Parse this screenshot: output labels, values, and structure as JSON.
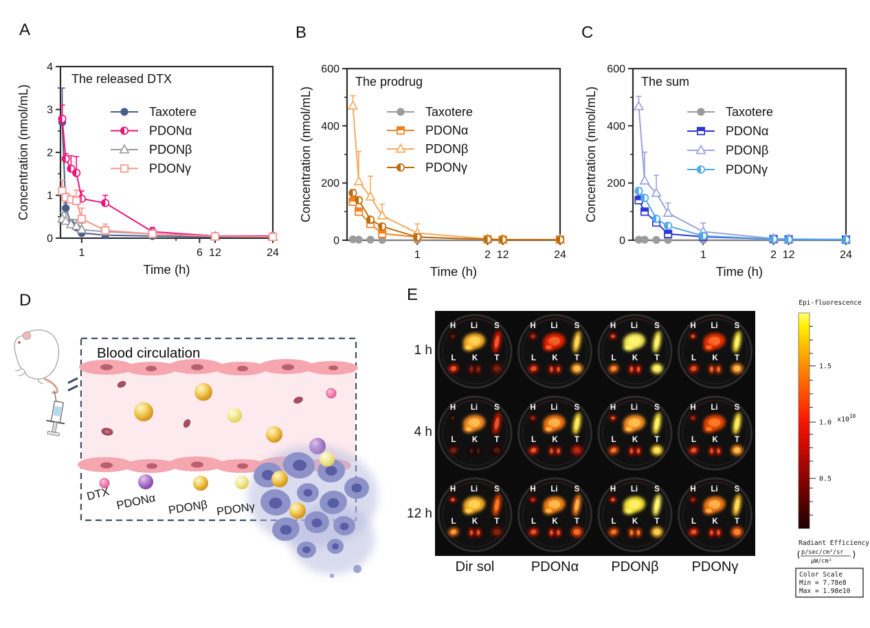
{
  "figure": {
    "panel_labels": [
      "A",
      "B",
      "C",
      "D",
      "E"
    ]
  },
  "chart_data": [
    {
      "type": "line",
      "panel": "A",
      "title": "The released DTX",
      "xlabel": "Time (h)",
      "ylabel": "Concentration (nmol/mL)",
      "ylim": [
        0,
        4
      ],
      "yticks": [
        0,
        1,
        2,
        3,
        4
      ],
      "yticks_minor": [
        0.5,
        1.5,
        2.5,
        3.5
      ],
      "xticks": [
        1,
        6,
        12,
        24
      ],
      "xticks_minor": [
        5
      ],
      "grid": false,
      "legend_position": "inside-top-right",
      "x": [
        0.083,
        0.25,
        0.5,
        0.75,
        1,
        2,
        4,
        12,
        24
      ],
      "series": [
        {
          "name": "Taxotere",
          "color": "#4a5b8e",
          "marker": "circle",
          "values": [
            2.7,
            0.7,
            0.33,
            0.25,
            0.12,
            0.07,
            0.05,
            0.03,
            0.03
          ],
          "err": [
            0.8,
            0.12,
            0.1,
            0.18,
            0.1,
            0.05,
            0.03,
            0.02,
            0.02
          ]
        },
        {
          "name": "PDONα",
          "color": "#ee1378",
          "marker": "circle-half",
          "values": [
            2.78,
            1.85,
            1.62,
            1.52,
            0.92,
            0.82,
            0.15,
            0.05,
            0.05
          ],
          "err": [
            0.32,
            0.12,
            0.3,
            0.38,
            0.18,
            0.18,
            0.1,
            0.03,
            0.03
          ]
        },
        {
          "name": "PDONβ",
          "color": "#9b9b9d",
          "marker": "triangle-open",
          "values": [
            0.45,
            0.4,
            0.32,
            0.28,
            0.2,
            0.15,
            0.1,
            0.04,
            0.03
          ],
          "err": [
            0.15,
            0.2,
            0.12,
            0.15,
            0.15,
            0.12,
            0.07,
            0.02,
            0.02
          ]
        },
        {
          "name": "PDONγ",
          "color": "#f7948b",
          "marker": "square-open",
          "values": [
            1.1,
            0.95,
            0.9,
            0.87,
            0.45,
            0.18,
            0.1,
            0.04,
            0.03
          ],
          "err": [
            0.25,
            0.1,
            0.08,
            0.25,
            0.25,
            0.15,
            0.07,
            0.02,
            0.02
          ]
        }
      ]
    },
    {
      "type": "line",
      "panel": "B",
      "title": "The prodrug",
      "xlabel": "Time (h)",
      "ylabel": "Concentration (nmol/mL)",
      "ylim": [
        0,
        600
      ],
      "yticks": [
        0,
        200,
        400,
        600
      ],
      "yticks_minor": [
        100,
        300,
        500
      ],
      "xticks": [
        1,
        2,
        12,
        24
      ],
      "xticks_minor": [
        0.5
      ],
      "grid": false,
      "legend_position": "inside-top-right",
      "x": [
        0.083,
        0.167,
        0.333,
        0.5,
        1,
        2,
        12,
        24
      ],
      "series": [
        {
          "name": "Taxotere",
          "color": "#9b9b9d",
          "marker": "circle",
          "values": [
            3,
            2,
            2,
            1,
            1,
            1,
            1,
            1
          ],
          "err": [
            1,
            1,
            1,
            1,
            1,
            0.5,
            0.5,
            0.5
          ]
        },
        {
          "name": "PDONα",
          "color": "#f28221",
          "marker": "square-half",
          "values": [
            135,
            100,
            57,
            23,
            11,
            3,
            2,
            2
          ],
          "err": [
            15,
            12,
            10,
            8,
            6,
            2,
            1,
            1
          ]
        },
        {
          "name": "PDONβ",
          "color": "#f7a85c",
          "marker": "triangle-open",
          "values": [
            470,
            205,
            152,
            86,
            25,
            5,
            3,
            2
          ],
          "err": [
            35,
            105,
            72,
            40,
            32,
            3,
            2,
            2
          ]
        },
        {
          "name": "PDONγ",
          "color": "#bf6c0e",
          "marker": "circle-half",
          "values": [
            165,
            140,
            72,
            48,
            11,
            3,
            2,
            2
          ],
          "err": [
            12,
            10,
            9,
            10,
            5,
            2,
            1,
            1
          ]
        }
      ]
    },
    {
      "type": "line",
      "panel": "C",
      "title": "The sum",
      "xlabel": "Time (h)",
      "ylabel": "Concentration (nmol/mL)",
      "ylim": [
        0,
        600
      ],
      "yticks": [
        0,
        200,
        400,
        600
      ],
      "yticks_minor": [
        100,
        300,
        500
      ],
      "xticks": [
        1,
        2,
        12,
        24
      ],
      "xticks_minor": [
        0.5
      ],
      "grid": false,
      "legend_position": "inside-top-right",
      "x": [
        0.083,
        0.167,
        0.333,
        0.5,
        1,
        2,
        12,
        24
      ],
      "series": [
        {
          "name": "Taxotere",
          "color": "#9b9b9d",
          "marker": "circle",
          "values": [
            2,
            2,
            1,
            1,
            1,
            1,
            1,
            1
          ],
          "err": [
            1,
            1,
            1,
            1,
            1,
            0.5,
            0.5,
            0.5
          ]
        },
        {
          "name": "PDONα",
          "color": "#2f35d8",
          "marker": "square-half",
          "values": [
            140,
            100,
            62,
            22,
            12,
            4,
            3,
            2
          ],
          "err": [
            15,
            12,
            10,
            7,
            5,
            2,
            2,
            2
          ]
        },
        {
          "name": "PDONβ",
          "color": "#9aa2dc",
          "marker": "triangle-open",
          "values": [
            468,
            208,
            165,
            95,
            30,
            6,
            4,
            3
          ],
          "err": [
            35,
            100,
            62,
            35,
            30,
            3,
            2,
            2
          ]
        },
        {
          "name": "PDONγ",
          "color": "#4da7e8",
          "marker": "circle-half",
          "values": [
            172,
            148,
            75,
            50,
            15,
            4,
            3,
            2
          ],
          "err": [
            12,
            10,
            8,
            10,
            5,
            2,
            2,
            2
          ]
        }
      ]
    }
  ],
  "panelD": {
    "title": "Blood circulation",
    "legend": [
      {
        "label": "DTX",
        "color": "#f06fa8"
      },
      {
        "label": "PDONα",
        "color": "#9a58bd"
      },
      {
        "label": "PDONβ",
        "color": "#eebf45"
      },
      {
        "label": "PDONγ",
        "color": "#f2e788"
      }
    ]
  },
  "panelE": {
    "row_labels": [
      "1 h",
      "4 h",
      "12 h"
    ],
    "col_labels": [
      "Dir sol",
      "PDONα",
      "PDONβ",
      "PDONγ"
    ],
    "organ_labels": {
      "top": [
        "H",
        "Li",
        "S"
      ],
      "bottom": [
        "L",
        "K",
        "T"
      ]
    },
    "cells": [
      {
        "organs": {
          "H": "#4a0500",
          "Li": "#ffb428",
          "S": "#e81800",
          "L": "#d81500",
          "K": "#7a0a00",
          "T": "#600700"
        }
      },
      {
        "organs": {
          "H": "#b01000",
          "Li": "#ee2000",
          "S": "#ffc030",
          "L": "#cc1500",
          "K": "#cc1500",
          "T": "#ff9820"
        }
      },
      {
        "organs": {
          "H": "#cc1500",
          "Li": "#fff25a",
          "S": "#ffee4a",
          "L": "#f06010",
          "K": "#d81800",
          "T": "#ffee4a"
        }
      },
      {
        "organs": {
          "H": "#b81200",
          "Li": "#f43000",
          "S": "#ffe838",
          "L": "#cc1500",
          "K": "#e83800",
          "T": "#ff8c1a"
        }
      },
      {
        "organs": {
          "H": "#2a0300",
          "Li": "#ff9020",
          "S": "#cc1500",
          "L": "#5a0700",
          "K": "#2a0300",
          "T": "#300400"
        }
      },
      {
        "organs": {
          "H": "#8a0c00",
          "Li": "#fc7a14",
          "S": "#ffe030",
          "L": "#cc1500",
          "K": "#c41300",
          "T": "#a81000"
        }
      },
      {
        "organs": {
          "H": "#c41300",
          "Li": "#ff9420",
          "S": "#ffe838",
          "L": "#e04000",
          "K": "#cc1500",
          "T": "#ffd028"
        }
      },
      {
        "organs": {
          "H": "#900d00",
          "Li": "#f04800",
          "S": "#ffe030",
          "L": "#c41300",
          "K": "#cc1500",
          "T": "#ff8c1a"
        }
      },
      {
        "organs": {
          "H": "#c41300",
          "Li": "#ffb428",
          "S": "#f04800",
          "L": "#f87316",
          "K": "#cc1500",
          "T": "#6b0800"
        }
      },
      {
        "organs": {
          "H": "#b01000",
          "Li": "#fc8618",
          "S": "#fc7a14",
          "L": "#cc1500",
          "K": "#d81500",
          "T": "#e83800"
        }
      },
      {
        "organs": {
          "H": "#cc1500",
          "Li": "#ffe838",
          "S": "#fff25a",
          "L": "#e04000",
          "K": "#f04800",
          "T": "#ffb428"
        }
      },
      {
        "organs": {
          "H": "#900d00",
          "Li": "#fc7a14",
          "S": "#ffc62e",
          "L": "#cc1500",
          "K": "#d81500",
          "T": "#fc5a08"
        }
      }
    ]
  },
  "colorbar": {
    "title": "Epi-fluorescence",
    "ticks": [
      "1.5",
      "1.0",
      "0.5"
    ],
    "multiplier": "x10",
    "multiplier_exp": "10",
    "label": "Radiant Efficiency",
    "units_numerator": "p/sec/cm²/sr",
    "units_denominator": "µW/cm²",
    "scale_box": {
      "line1": "Color Scale",
      "line2": "Min = 7.78e8",
      "line3": "Max = 1.98e10"
    }
  }
}
